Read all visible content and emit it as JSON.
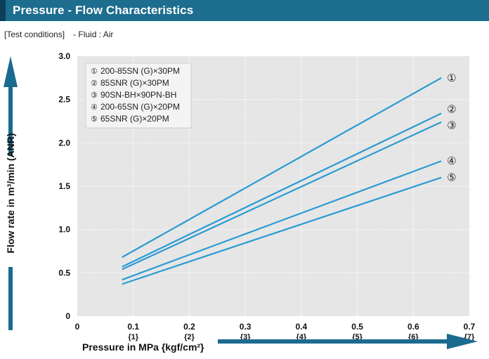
{
  "header": {
    "title": "Pressure - Flow Characteristics"
  },
  "test_conditions": {
    "label": "[Test conditions]",
    "fluid": "- Fluid : Air"
  },
  "colors": {
    "header": "#1c6d8e",
    "plot_bg": "#e6e6e6",
    "line": "#2a9bd4",
    "arrow": "#1a6b8f"
  },
  "chart_data": {
    "type": "line",
    "xlabel": "Pressure in MPa {kgf/cm²}",
    "ylabel": "Flow rate in m³/min (ANR)",
    "xlim": [
      0,
      0.7
    ],
    "ylim": [
      0,
      3.0
    ],
    "x_ticks": [
      {
        "value": 0,
        "label": "0",
        "sub": ""
      },
      {
        "value": 0.1,
        "label": "0.1",
        "sub": "{1}"
      },
      {
        "value": 0.2,
        "label": "0.2",
        "sub": "{2}"
      },
      {
        "value": 0.3,
        "label": "0.3",
        "sub": "{3}"
      },
      {
        "value": 0.4,
        "label": "0.4",
        "sub": "{4}"
      },
      {
        "value": 0.5,
        "label": "0.5",
        "sub": "{5}"
      },
      {
        "value": 0.6,
        "label": "0.6",
        "sub": "{6}"
      },
      {
        "value": 0.7,
        "label": "0.7",
        "sub": "{7}"
      }
    ],
    "y_ticks": [
      {
        "value": 0,
        "label": "0"
      },
      {
        "value": 0.5,
        "label": "0.5"
      },
      {
        "value": 1.0,
        "label": "1.0"
      },
      {
        "value": 1.5,
        "label": "1.5"
      },
      {
        "value": 2.0,
        "label": "2.0"
      },
      {
        "value": 2.5,
        "label": "2.5"
      },
      {
        "value": 3.0,
        "label": "3.0"
      }
    ],
    "grid": true,
    "legend_position": "top-left",
    "series": [
      {
        "marker": "①",
        "name": "200-85SN (G)×30PM",
        "x": [
          0.08,
          0.65
        ],
        "y": [
          0.68,
          2.75
        ]
      },
      {
        "marker": "②",
        "name": "85SNR (G)×30PM",
        "x": [
          0.08,
          0.65
        ],
        "y": [
          0.57,
          2.34
        ]
      },
      {
        "marker": "③",
        "name": "90SN-BH×90PN-BH",
        "x": [
          0.08,
          0.65
        ],
        "y": [
          0.54,
          2.24
        ]
      },
      {
        "marker": "④",
        "name": "200-65SN (G)×20PM",
        "x": [
          0.08,
          0.65
        ],
        "y": [
          0.42,
          1.79
        ]
      },
      {
        "marker": "⑤",
        "name": "65SNR (G)×20PM",
        "x": [
          0.08,
          0.65
        ],
        "y": [
          0.37,
          1.6
        ]
      }
    ]
  }
}
